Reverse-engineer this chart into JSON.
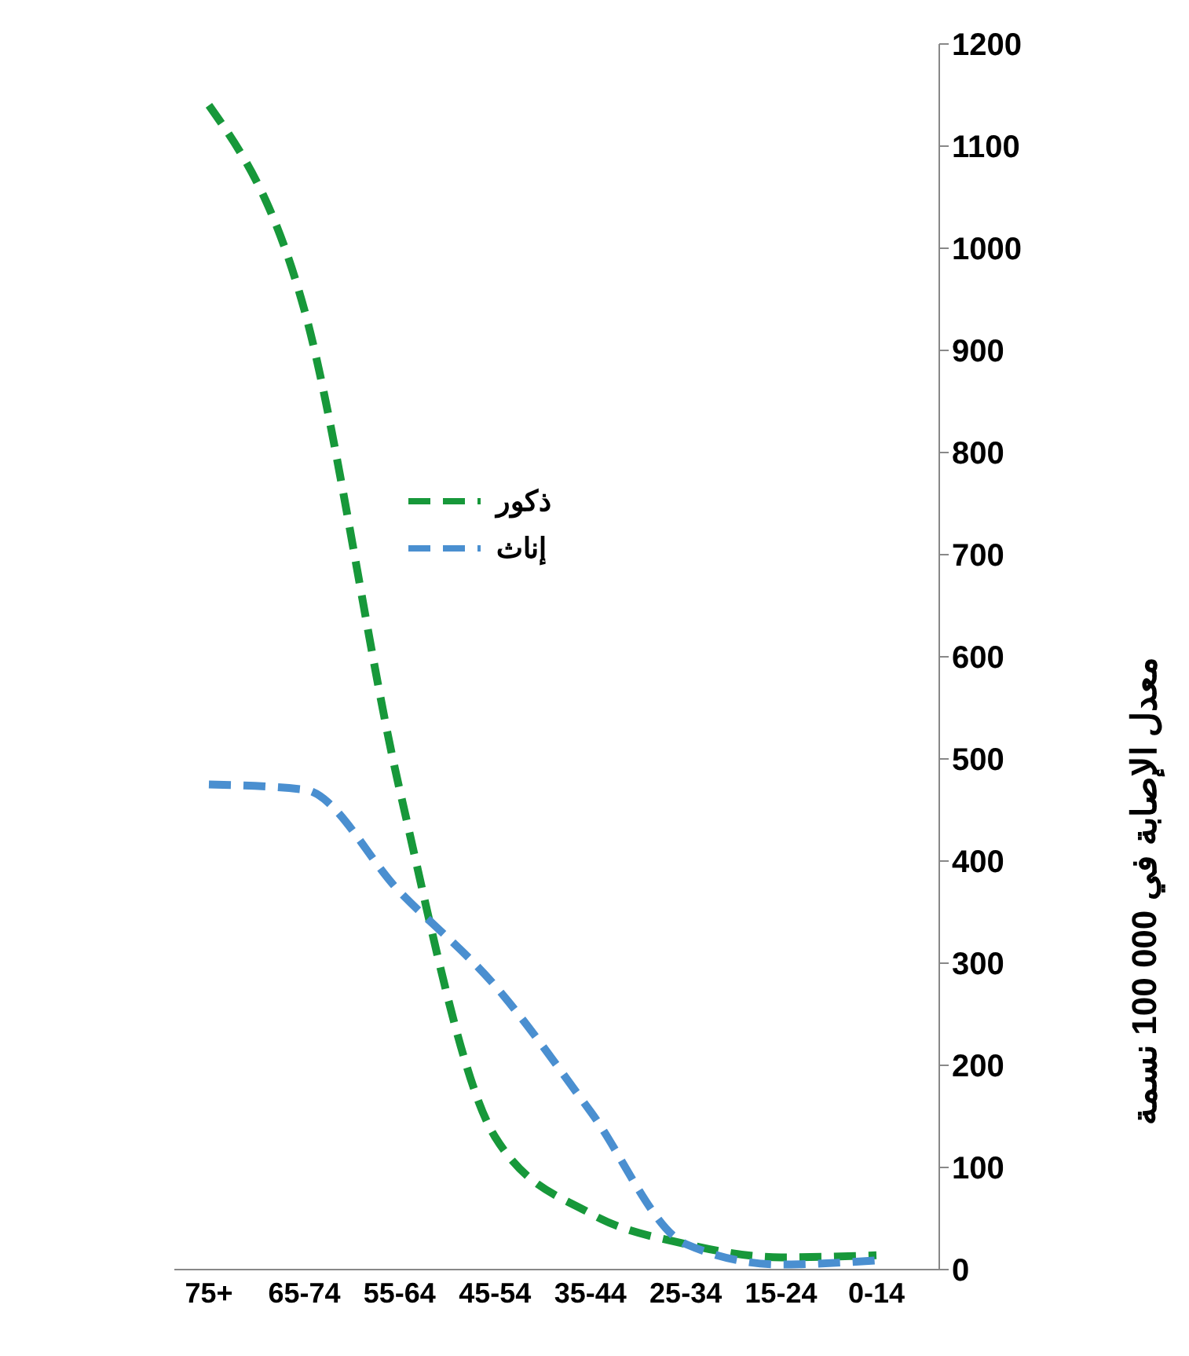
{
  "chart_data": {
    "type": "line",
    "ylabel": "معدل الإصابة في 100 000 نسمة",
    "categories": [
      "75+",
      "65-74",
      "55-64",
      "45-54",
      "35-44",
      "25-34",
      "15-24",
      "0-14"
    ],
    "series": [
      {
        "name": "ذكور",
        "color": "#17983a",
        "values": [
          1140,
          940,
          470,
          130,
          55,
          25,
          12,
          14
        ]
      },
      {
        "name": "إناث",
        "color": "#4a8fd0",
        "values": [
          475,
          470,
          370,
          278,
          155,
          25,
          5,
          9
        ]
      }
    ],
    "ylim": [
      0,
      1200
    ],
    "yticks": [
      0,
      100,
      200,
      300,
      400,
      500,
      600,
      700,
      800,
      900,
      1000,
      1100,
      1200
    ],
    "grid": false,
    "legend": "center",
    "line_style": "dashed",
    "marker": "none"
  }
}
